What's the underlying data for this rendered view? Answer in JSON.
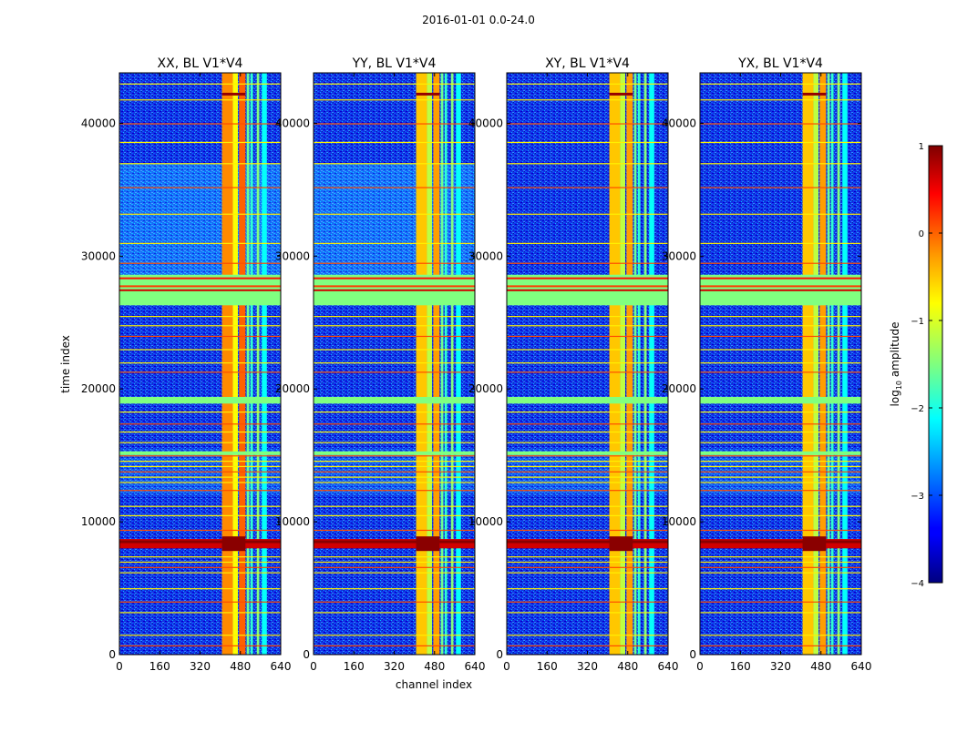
{
  "figure": {
    "suptitle": "2016-01-01 0.0-24.0",
    "xlabel": "channel index",
    "ylabel": "time index",
    "colorbar_label_main": "log",
    "colorbar_label_sub": "10",
    "colorbar_label_tail": " amplitude",
    "colorbar_ticks": [
      "1",
      "0",
      "−1",
      "−2",
      "−3",
      "−4"
    ],
    "colorbar_tick_values": [
      1,
      0,
      -1,
      -2,
      -3,
      -4
    ]
  },
  "chart_data": {
    "type": "heatmap",
    "colormap": "jet",
    "value_range": [
      -4,
      1
    ],
    "x_ticks": [
      0,
      160,
      320,
      480,
      640
    ],
    "y_ticks": [
      0,
      10000,
      20000,
      30000,
      40000
    ],
    "xlim": [
      0,
      640
    ],
    "ylim": [
      0,
      43800
    ],
    "panels": [
      {
        "title": "XX, BL V1*V4",
        "pol": "XX"
      },
      {
        "title": "YY, BL V1*V4",
        "pol": "YY"
      },
      {
        "title": "XY, BL V1*V4",
        "pol": "XY"
      },
      {
        "title": "YX, BL V1*V4",
        "pol": "YX"
      }
    ],
    "rfi_channel_bands": [
      [
        407,
        450
      ],
      [
        450,
        470
      ],
      [
        475,
        500
      ],
      [
        505,
        515
      ],
      [
        520,
        530
      ],
      [
        545,
        555
      ],
      [
        565,
        585
      ]
    ],
    "flagged_time_rows": [
      26600,
      27000,
      27400,
      27800,
      28200,
      28600
    ],
    "high_rfi_time_range": [
      8000,
      8700
    ]
  },
  "colors": {
    "background": "#ffffff",
    "axes": "#000000",
    "flag_band": "#80ff80"
  }
}
